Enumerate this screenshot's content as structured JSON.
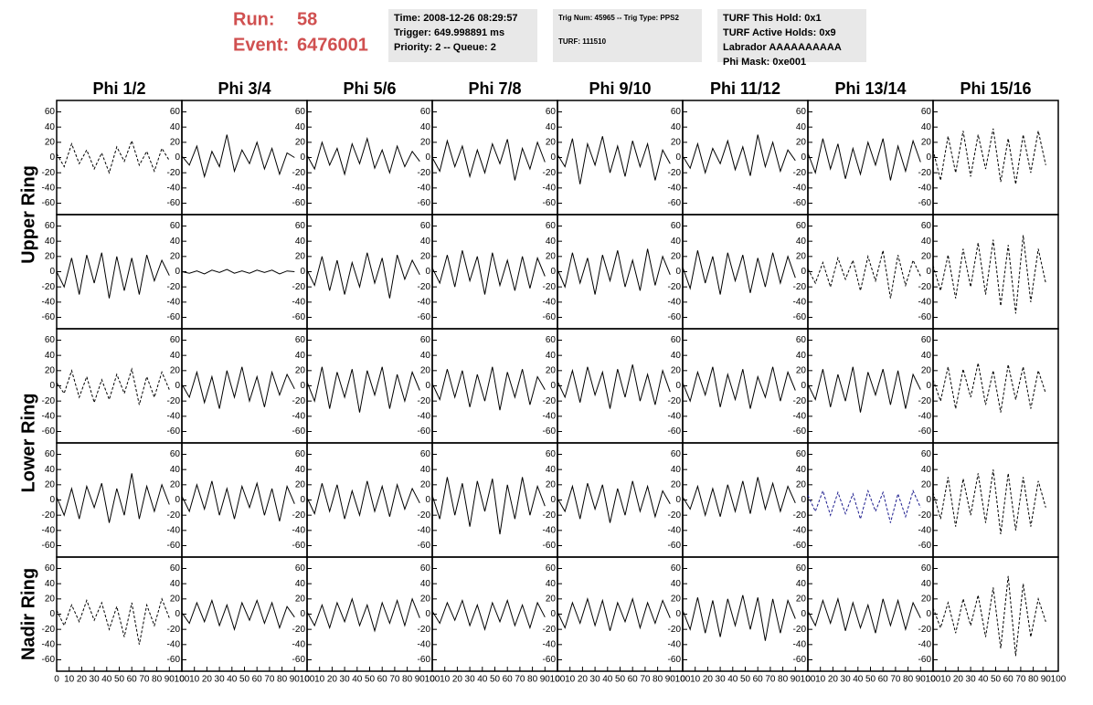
{
  "header": {
    "run_label": "Run:",
    "run": "58",
    "event_label": "Event:",
    "event": "6476001",
    "boxes": [
      [
        "Time: 2008-12-26 08:29:57",
        "Trigger: 649.998891 ms",
        "Priority: 2 -- Queue: 2"
      ],
      [
        "Trig Num: 45965 -- Trig Type: PPS2",
        "TURF: 111510"
      ],
      [
        "TURF This Hold: 0x1",
        "TURF Active Holds: 0x9",
        "Labrador AAAAAAAAAA",
        "Phi Mask: 0xe001"
      ]
    ]
  },
  "chart_data": {
    "type": "line",
    "columns": [
      "Phi 1/2",
      "Phi 3/4",
      "Phi 5/6",
      "Phi 7/8",
      "Phi 9/10",
      "Phi 11/12",
      "Phi 13/14",
      "Phi 15/16"
    ],
    "ring_labels": [
      "Upper Ring",
      "Lower Ring",
      "Nadir Ring"
    ],
    "xlim": [
      0,
      100
    ],
    "ylim": [
      -75,
      75
    ],
    "xticks": [
      0,
      10,
      20,
      30,
      40,
      50,
      60,
      70,
      80,
      90,
      100
    ],
    "yticks": [
      -60,
      -40,
      -20,
      0,
      20,
      40,
      60
    ],
    "x": [
      0,
      6,
      12,
      18,
      24,
      30,
      36,
      42,
      48,
      54,
      60,
      66,
      72,
      78,
      84,
      90
    ],
    "panels": [
      [
        {
          "style": "dashed",
          "color": "#000000",
          "values": [
            5,
            -12,
            18,
            -8,
            10,
            -15,
            6,
            -20,
            14,
            -5,
            22,
            -10,
            8,
            -18,
            12,
            -4
          ]
        },
        {
          "style": "solid",
          "color": "#000000",
          "values": [
            2,
            -10,
            15,
            -25,
            8,
            -12,
            30,
            -18,
            10,
            -8,
            20,
            -15,
            12,
            -22,
            6,
            0
          ]
        },
        {
          "style": "solid",
          "color": "#000000",
          "values": [
            3,
            -15,
            20,
            -10,
            12,
            -22,
            18,
            -8,
            25,
            -14,
            10,
            -20,
            15,
            -12,
            8,
            -5
          ]
        },
        {
          "style": "solid",
          "color": "#000000",
          "values": [
            0,
            -18,
            22,
            -12,
            15,
            -25,
            10,
            -20,
            18,
            -8,
            24,
            -30,
            12,
            -15,
            20,
            -6
          ]
        },
        {
          "style": "solid",
          "color": "#000000",
          "values": [
            4,
            -12,
            25,
            -35,
            18,
            -10,
            28,
            -20,
            15,
            -25,
            22,
            -12,
            18,
            -30,
            10,
            -8
          ]
        },
        {
          "style": "solid",
          "color": "#000000",
          "values": [
            2,
            -14,
            18,
            -20,
            12,
            -8,
            22,
            -16,
            14,
            -24,
            30,
            -12,
            20,
            -18,
            10,
            -4
          ]
        },
        {
          "style": "solid",
          "color": "#000000",
          "values": [
            6,
            -20,
            25,
            -15,
            18,
            -28,
            12,
            -22,
            20,
            -10,
            25,
            -30,
            15,
            -18,
            22,
            -6
          ]
        },
        {
          "style": "dashed",
          "color": "#000000",
          "values": [
            10,
            -30,
            28,
            -20,
            35,
            -25,
            30,
            -15,
            38,
            -32,
            25,
            -35,
            30,
            -20,
            35,
            -10
          ]
        }
      ],
      [
        {
          "style": "solid",
          "color": "#000000",
          "values": [
            0,
            -20,
            18,
            -30,
            22,
            -15,
            25,
            -35,
            20,
            -25,
            18,
            -30,
            22,
            -12,
            15,
            -5
          ]
        },
        {
          "style": "solid",
          "color": "#000000",
          "values": [
            0,
            -2,
            1,
            -3,
            2,
            -1,
            3,
            -2,
            1,
            -2,
            2,
            -1,
            2,
            -3,
            1,
            0
          ]
        },
        {
          "style": "solid",
          "color": "#000000",
          "values": [
            2,
            -18,
            20,
            -25,
            15,
            -30,
            12,
            -20,
            25,
            -15,
            18,
            -35,
            22,
            -10,
            15,
            -4
          ]
        },
        {
          "style": "solid",
          "color": "#000000",
          "values": [
            5,
            -15,
            22,
            -20,
            28,
            -12,
            20,
            -30,
            25,
            -18,
            15,
            -25,
            20,
            -22,
            18,
            -6
          ]
        },
        {
          "style": "solid",
          "color": "#000000",
          "values": [
            3,
            -20,
            25,
            -15,
            18,
            -30,
            22,
            -12,
            28,
            -20,
            15,
            -25,
            30,
            -18,
            20,
            -4
          ]
        },
        {
          "style": "solid",
          "color": "#000000",
          "values": [
            6,
            -22,
            28,
            -15,
            20,
            -30,
            25,
            -12,
            22,
            -28,
            18,
            -20,
            25,
            -15,
            20,
            -8
          ]
        },
        {
          "style": "dashed",
          "color": "#000000",
          "values": [
            4,
            -15,
            12,
            -20,
            18,
            -10,
            15,
            -25,
            20,
            -12,
            28,
            -35,
            22,
            -18,
            15,
            -6
          ]
        },
        {
          "style": "dashed",
          "color": "#000000",
          "values": [
            8,
            -25,
            22,
            -35,
            30,
            -20,
            38,
            -30,
            42,
            -45,
            35,
            -55,
            48,
            -40,
            30,
            -15
          ]
        }
      ],
      [
        {
          "style": "dashed",
          "color": "#000000",
          "values": [
            4,
            -10,
            20,
            -15,
            12,
            -22,
            8,
            -18,
            15,
            -10,
            22,
            -25,
            12,
            -15,
            18,
            -5
          ]
        },
        {
          "style": "solid",
          "color": "#000000",
          "values": [
            2,
            -15,
            18,
            -22,
            12,
            -30,
            20,
            -15,
            25,
            -20,
            12,
            -28,
            18,
            -12,
            15,
            -4
          ]
        },
        {
          "style": "solid",
          "color": "#000000",
          "values": [
            5,
            -20,
            25,
            -30,
            18,
            -15,
            22,
            -35,
            20,
            -12,
            25,
            -30,
            15,
            -20,
            18,
            -6
          ]
        },
        {
          "style": "solid",
          "color": "#000000",
          "values": [
            3,
            -18,
            22,
            -15,
            20,
            -28,
            15,
            -20,
            25,
            -32,
            18,
            -15,
            22,
            -25,
            12,
            -5
          ]
        },
        {
          "style": "solid",
          "color": "#000000",
          "values": [
            6,
            -15,
            20,
            -22,
            25,
            -12,
            18,
            -30,
            22,
            -15,
            28,
            -20,
            15,
            -25,
            20,
            -8
          ]
        },
        {
          "style": "solid",
          "color": "#000000",
          "values": [
            4,
            -20,
            18,
            -12,
            25,
            -28,
            15,
            -18,
            22,
            -30,
            12,
            -15,
            25,
            -20,
            18,
            -6
          ]
        },
        {
          "style": "solid",
          "color": "#000000",
          "values": [
            2,
            -18,
            22,
            -28,
            15,
            -20,
            25,
            -35,
            18,
            -12,
            22,
            -25,
            20,
            -30,
            15,
            -5
          ]
        },
        {
          "style": "dashed",
          "color": "#000000",
          "values": [
            8,
            -20,
            25,
            -30,
            22,
            -15,
            30,
            -25,
            20,
            -35,
            28,
            -18,
            25,
            -30,
            20,
            -10
          ]
        }
      ],
      [
        {
          "style": "solid",
          "color": "#000000",
          "values": [
            4,
            -20,
            15,
            -25,
            18,
            -10,
            22,
            -30,
            15,
            -20,
            35,
            -25,
            18,
            -15,
            20,
            -6
          ]
        },
        {
          "style": "solid",
          "color": "#000000",
          "values": [
            5,
            -15,
            20,
            -12,
            25,
            -20,
            15,
            -25,
            18,
            -10,
            22,
            -20,
            15,
            -28,
            18,
            -5
          ]
        },
        {
          "style": "solid",
          "color": "#000000",
          "values": [
            3,
            -18,
            22,
            -15,
            20,
            -25,
            12,
            -20,
            25,
            -15,
            18,
            -22,
            20,
            -12,
            15,
            -4
          ]
        },
        {
          "style": "solid",
          "color": "#000000",
          "values": [
            6,
            -25,
            30,
            -20,
            22,
            -35,
            25,
            -15,
            28,
            -45,
            20,
            -25,
            30,
            -20,
            18,
            -8
          ]
        },
        {
          "style": "solid",
          "color": "#000000",
          "values": [
            2,
            -15,
            18,
            -25,
            22,
            -12,
            20,
            -30,
            15,
            -20,
            25,
            -15,
            18,
            -22,
            12,
            -5
          ]
        },
        {
          "style": "solid",
          "color": "#000000",
          "values": [
            4,
            -12,
            18,
            -20,
            15,
            -22,
            20,
            -15,
            25,
            -18,
            30,
            -12,
            22,
            -15,
            18,
            -4
          ]
        },
        {
          "style": "dashed",
          "color": "#1a1a8c",
          "values": [
            6,
            -15,
            12,
            -20,
            10,
            -18,
            8,
            -25,
            12,
            -15,
            10,
            -30,
            8,
            -22,
            12,
            -10
          ]
        },
        {
          "style": "dashed",
          "color": "#000000",
          "values": [
            10,
            -25,
            30,
            -35,
            28,
            -20,
            35,
            -30,
            40,
            -45,
            35,
            -40,
            30,
            -35,
            25,
            -10
          ]
        }
      ],
      [
        {
          "style": "dashed",
          "color": "#000000",
          "values": [
            5,
            -15,
            12,
            -10,
            18,
            -8,
            15,
            -20,
            10,
            -30,
            15,
            -40,
            12,
            -15,
            20,
            -5
          ]
        },
        {
          "style": "solid",
          "color": "#000000",
          "values": [
            2,
            -12,
            15,
            -10,
            18,
            -15,
            12,
            -20,
            15,
            -8,
            18,
            -12,
            15,
            -18,
            10,
            -4
          ]
        },
        {
          "style": "solid",
          "color": "#000000",
          "values": [
            3,
            -15,
            12,
            -18,
            15,
            -10,
            20,
            -15,
            12,
            -22,
            15,
            -12,
            18,
            -15,
            20,
            -5
          ]
        },
        {
          "style": "solid",
          "color": "#000000",
          "values": [
            4,
            -12,
            15,
            -8,
            18,
            -15,
            12,
            -20,
            15,
            -10,
            18,
            -15,
            12,
            -18,
            15,
            -4
          ]
        },
        {
          "style": "solid",
          "color": "#000000",
          "values": [
            3,
            -18,
            15,
            -12,
            20,
            -15,
            18,
            -22,
            15,
            -10,
            20,
            -18,
            15,
            -12,
            18,
            -5
          ]
        },
        {
          "style": "solid",
          "color": "#000000",
          "values": [
            5,
            -20,
            22,
            -25,
            18,
            -30,
            20,
            -15,
            25,
            -20,
            22,
            -35,
            20,
            -25,
            18,
            -6
          ]
        },
        {
          "style": "solid",
          "color": "#000000",
          "values": [
            4,
            -15,
            18,
            -12,
            20,
            -22,
            15,
            -18,
            12,
            -25,
            20,
            -15,
            18,
            -20,
            15,
            -5
          ]
        },
        {
          "style": "dashed",
          "color": "#000000",
          "values": [
            8,
            -18,
            15,
            -25,
            20,
            -15,
            25,
            -30,
            35,
            -45,
            50,
            -55,
            40,
            -30,
            20,
            -10
          ]
        }
      ]
    ]
  }
}
